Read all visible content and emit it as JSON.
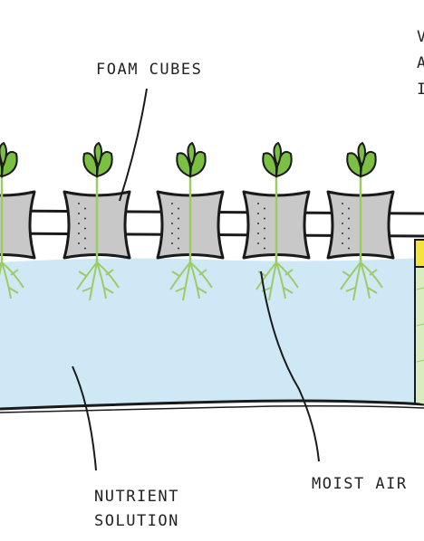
{
  "labels": {
    "foam_cubes": "FOAM CUBES",
    "moist_air": "MOIST AIR",
    "nutrient_line1": "NUTRIENT",
    "nutrient_line2": "SOLUTION",
    "edge_letters": [
      "V",
      "A",
      "I"
    ]
  },
  "plant_count": 5,
  "colors": {
    "solution": "#cfe8f6",
    "cube": "#c8c8c8",
    "leaf": "#7cc043",
    "root": "#9ccc65",
    "outline": "#1a1a1a",
    "yellow": "#f5e23a",
    "green_block": "#d9ecc0"
  }
}
